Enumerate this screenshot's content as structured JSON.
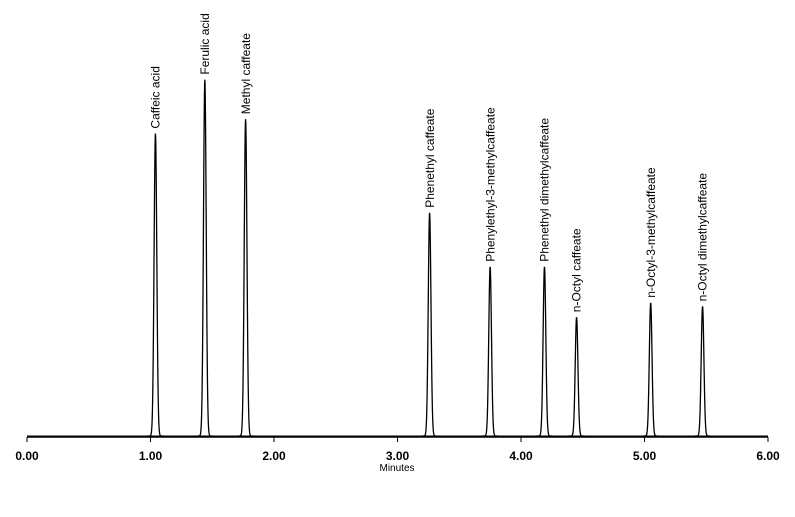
{
  "chart_data": {
    "type": "chromatogram",
    "xlabel": "Minutes",
    "xlim": [
      0,
      6
    ],
    "ylim": [
      0,
      100
    ],
    "xticks": [
      {
        "value": 0,
        "label": "0.00"
      },
      {
        "value": 1,
        "label": "1.00"
      },
      {
        "value": 2,
        "label": "2.00"
      },
      {
        "value": 3,
        "label": "3.00"
      },
      {
        "value": 4,
        "label": "4.00"
      },
      {
        "value": 5,
        "label": "5.00"
      },
      {
        "value": 6,
        "label": "6.00"
      }
    ],
    "color": "#000000",
    "peaks": {
      "names": [
        "Caffeic acid",
        "Ferulic acid",
        "Methyl caffeate",
        "Phenethyl caffeate",
        "Phenylethyl-3-methylcaffeate",
        "Phenethyl dimethylcaffeate",
        "n-Octyl caffeate",
        "n-Octyl-3-methylcaffeate",
        "n-Octyl dimethylcaffeate"
      ],
      "x": [
        1.04,
        1.44,
        1.77,
        3.26,
        3.75,
        4.19,
        4.45,
        5.05,
        5.47
      ],
      "values": [
        84,
        99,
        88,
        62,
        47,
        47,
        33,
        37,
        36
      ]
    }
  }
}
